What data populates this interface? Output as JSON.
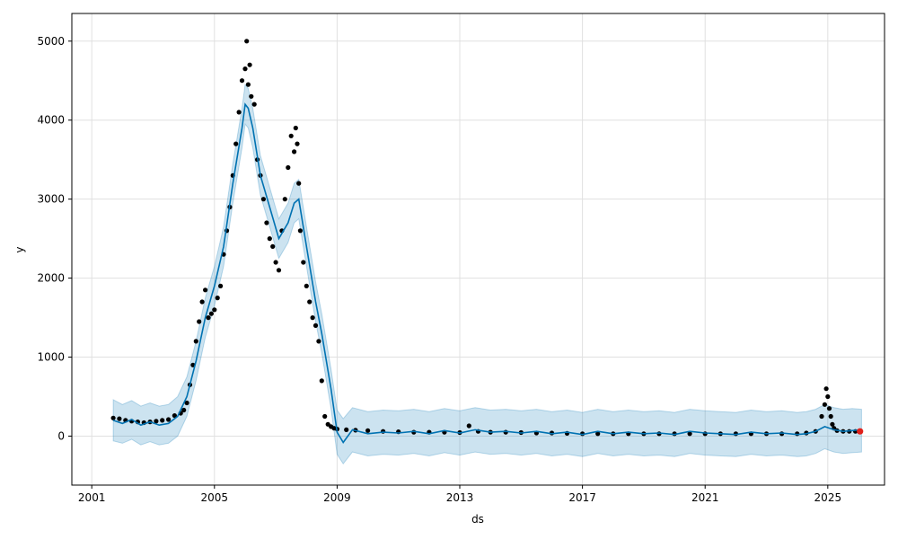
{
  "chart_data": {
    "type": "line",
    "title": "",
    "xlabel": "ds",
    "ylabel": "y",
    "xlim": [
      2000.35,
      2026.85
    ],
    "ylim": [
      -620,
      5350
    ],
    "grid": true,
    "xticks": [
      {
        "value": 2001,
        "label": "2001"
      },
      {
        "value": 2005,
        "label": "2005"
      },
      {
        "value": 2009,
        "label": "2009"
      },
      {
        "value": 2013,
        "label": "2013"
      },
      {
        "value": 2017,
        "label": "2017"
      },
      {
        "value": 2021,
        "label": "2021"
      },
      {
        "value": 2025,
        "label": "2025"
      }
    ],
    "yticks": [
      {
        "value": 0,
        "label": "0"
      },
      {
        "value": 1000,
        "label": "1000"
      },
      {
        "value": 2000,
        "label": "2000"
      },
      {
        "value": 3000,
        "label": "3000"
      },
      {
        "value": 4000,
        "label": "4000"
      },
      {
        "value": 5000,
        "label": "5000"
      }
    ],
    "colors": {
      "observed": "#000000",
      "forecast": "#0072B2",
      "interval_fill": "#0072B2",
      "highlight": "#e0201b",
      "grid": "#e0e0e0"
    },
    "series": [
      {
        "kind": "points",
        "x": [
          2001.7,
          2001.9,
          2002.1,
          2002.3,
          2002.5,
          2002.7,
          2002.9,
          2003.1,
          2003.3,
          2003.5,
          2003.7,
          2003.9,
          2004.0,
          2004.1,
          2004.2,
          2004.3,
          2004.4,
          2004.5,
          2004.6,
          2004.7,
          2004.8,
          2004.9,
          2005.0,
          2005.1,
          2005.2,
          2005.3,
          2005.4,
          2005.5,
          2005.6,
          2005.7,
          2005.8,
          2005.9,
          2006.0,
          2006.05,
          2006.1,
          2006.15,
          2006.2,
          2006.3,
          2006.4,
          2006.5,
          2006.6,
          2006.7,
          2006.8,
          2006.9,
          2007.0,
          2007.1,
          2007.2,
          2007.3,
          2007.4,
          2007.5,
          2007.6,
          2007.65,
          2007.7,
          2007.75,
          2007.8,
          2007.9,
          2008.0,
          2008.1,
          2008.2,
          2008.3,
          2008.4,
          2008.5,
          2008.6,
          2008.7,
          2008.8,
          2008.9,
          2009.0,
          2009.3,
          2009.6,
          2010.0,
          2010.5,
          2011.0,
          2011.5,
          2012.0,
          2012.5,
          2013.0,
          2013.3,
          2013.6,
          2014.0,
          2014.5,
          2015.0,
          2015.5,
          2016.0,
          2016.5,
          2017.0,
          2017.5,
          2018.0,
          2018.5,
          2019.0,
          2019.5,
          2020.0,
          2020.5,
          2021.0,
          2021.5,
          2022.0,
          2022.5,
          2023.0,
          2023.5,
          2024.0,
          2024.3,
          2024.6,
          2024.8,
          2024.9,
          2024.95,
          2025.0,
          2025.05,
          2025.1,
          2025.15,
          2025.2,
          2025.3,
          2025.5,
          2025.7,
          2025.9
        ],
        "y": [
          230,
          220,
          200,
          190,
          180,
          170,
          180,
          190,
          200,
          210,
          260,
          290,
          330,
          420,
          650,
          900,
          1200,
          1450,
          1700,
          1850,
          1500,
          1550,
          1600,
          1750,
          1900,
          2300,
          2600,
          2900,
          3300,
          3700,
          4100,
          4500,
          4650,
          5000,
          4450,
          4700,
          4300,
          4200,
          3500,
          3300,
          3000,
          2700,
          2500,
          2400,
          2200,
          2100,
          2600,
          3000,
          3400,
          3800,
          3600,
          3900,
          3700,
          3200,
          2600,
          2200,
          1900,
          1700,
          1500,
          1400,
          1200,
          700,
          250,
          150,
          120,
          100,
          90,
          80,
          75,
          70,
          60,
          55,
          50,
          50,
          50,
          45,
          130,
          60,
          50,
          50,
          45,
          40,
          40,
          35,
          30,
          30,
          30,
          30,
          30,
          30,
          30,
          30,
          30,
          30,
          30,
          30,
          30,
          30,
          30,
          40,
          60,
          250,
          400,
          600,
          500,
          350,
          250,
          150,
          100,
          70,
          60,
          60,
          60
        ]
      },
      {
        "kind": "line",
        "x": [
          2001.7,
          2002.0,
          2002.3,
          2002.6,
          2002.9,
          2003.2,
          2003.5,
          2003.8,
          2004.1,
          2004.4,
          2004.7,
          2005.0,
          2005.3,
          2005.6,
          2005.9,
          2006.0,
          2006.1,
          2006.25,
          2006.5,
          2006.8,
          2007.1,
          2007.4,
          2007.6,
          2007.75,
          2008.0,
          2008.3,
          2008.5,
          2008.8,
          2009.0,
          2009.2,
          2009.5,
          2010.0,
          2010.5,
          2011.0,
          2011.5,
          2012.0,
          2012.5,
          2013.0,
          2013.5,
          2014.0,
          2014.5,
          2015.0,
          2015.5,
          2016.0,
          2016.5,
          2017.0,
          2017.5,
          2018.0,
          2018.5,
          2019.0,
          2019.5,
          2020.0,
          2020.5,
          2021.0,
          2021.5,
          2022.0,
          2022.5,
          2023.0,
          2023.5,
          2024.0,
          2024.3,
          2024.6,
          2024.9,
          2025.2,
          2025.5,
          2025.8,
          2026.1
        ],
        "y": [
          200,
          160,
          210,
          140,
          180,
          140,
          160,
          250,
          500,
          950,
          1500,
          1900,
          2400,
          3200,
          3900,
          4200,
          4150,
          3900,
          3300,
          2900,
          2500,
          2700,
          2950,
          3000,
          2400,
          1700,
          1300,
          600,
          50,
          -80,
          80,
          30,
          50,
          40,
          60,
          30,
          70,
          40,
          80,
          50,
          60,
          40,
          60,
          30,
          50,
          20,
          60,
          30,
          50,
          30,
          40,
          20,
          60,
          40,
          30,
          20,
          50,
          30,
          40,
          20,
          30,
          60,
          120,
          80,
          60,
          70,
          80
        ]
      },
      {
        "kind": "band_upper",
        "y": [
          460,
          400,
          450,
          380,
          420,
          380,
          400,
          500,
          750,
          1200,
          1750,
          2150,
          2650,
          3450,
          4150,
          4450,
          4400,
          4150,
          3550,
          3150,
          2750,
          2950,
          3200,
          3250,
          2650,
          1950,
          1550,
          850,
          330,
          220,
          360,
          310,
          330,
          320,
          340,
          310,
          350,
          320,
          360,
          330,
          340,
          320,
          340,
          310,
          330,
          300,
          340,
          310,
          330,
          310,
          320,
          300,
          340,
          320,
          310,
          300,
          330,
          310,
          320,
          300,
          310,
          340,
          400,
          360,
          340,
          350,
          340
        ]
      },
      {
        "kind": "band_lower",
        "y": [
          -60,
          -90,
          -40,
          -110,
          -70,
          -110,
          -90,
          0,
          250,
          700,
          1250,
          1650,
          2150,
          2950,
          3650,
          3950,
          3900,
          3650,
          3050,
          2650,
          2250,
          2450,
          2700,
          2750,
          2150,
          1450,
          1050,
          350,
          -230,
          -350,
          -200,
          -250,
          -230,
          -240,
          -220,
          -250,
          -210,
          -240,
          -200,
          -230,
          -220,
          -240,
          -220,
          -250,
          -230,
          -260,
          -220,
          -250,
          -230,
          -250,
          -240,
          -260,
          -220,
          -240,
          -250,
          -260,
          -230,
          -250,
          -240,
          -260,
          -250,
          -220,
          -160,
          -200,
          -220,
          -210,
          -200
        ]
      },
      {
        "kind": "highlight",
        "x": [
          2026.05
        ],
        "y": [
          60
        ]
      }
    ]
  }
}
